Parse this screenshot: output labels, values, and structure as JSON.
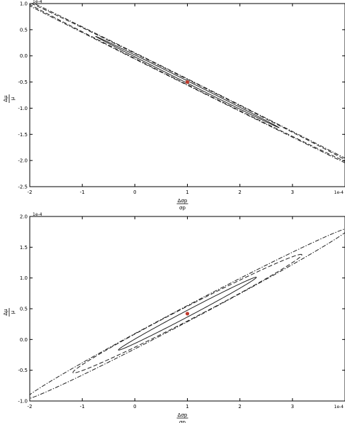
{
  "chart_data": [
    {
      "type": "line",
      "subtype": "confidence-ellipses",
      "xlim": [
        -2,
        4
      ],
      "ylim": [
        -2.5,
        1.0
      ],
      "xticks": [
        -2,
        -1,
        0,
        1,
        2,
        3,
        4
      ],
      "xtick_labels": [
        "-2",
        "-1",
        "0",
        "1",
        "2",
        "3",
        ""
      ],
      "yticks": [
        -2.5,
        -2.0,
        -1.5,
        -1.0,
        -0.5,
        0.0,
        0.5,
        1.0
      ],
      "ytick_labels": [
        "-2.5",
        "-2.0",
        "-1.5",
        "-1.0",
        "-0.5",
        "0.0",
        "0.5",
        "1.0"
      ],
      "x_offset_text": "1e-4",
      "y_offset_text": "1e-4",
      "xlabel": {
        "num": "Δσp",
        "den": "σp"
      },
      "ylabel": {
        "num": "Δμ",
        "den": "μ"
      },
      "grid": false,
      "center": {
        "x": 1.0,
        "y": -0.5,
        "color": "#c0392b"
      },
      "series": [
        {
          "linestyle": "solid",
          "center": [
            1.0,
            -0.5
          ],
          "semi_major": 1.95,
          "semi_minor": 0.02,
          "slope": -0.5
        },
        {
          "linestyle": "dashed",
          "center": [
            1.0,
            -0.5
          ],
          "semi_major": 3.55,
          "semi_minor": 0.045,
          "slope": -0.5
        },
        {
          "linestyle": "dashdot",
          "center": [
            1.0,
            -0.5
          ],
          "semi_major": 4.9,
          "semi_minor": 0.055,
          "slope": -0.5
        }
      ]
    },
    {
      "type": "line",
      "subtype": "confidence-ellipses",
      "xlim": [
        -2,
        4
      ],
      "ylim": [
        -1.0,
        2.0
      ],
      "xticks": [
        -2,
        -1,
        0,
        1,
        2,
        3,
        4
      ],
      "xtick_labels": [
        "-2",
        "-1",
        "0",
        "1",
        "2",
        "3",
        ""
      ],
      "yticks": [
        -1.0,
        -0.5,
        0.0,
        0.5,
        1.0,
        1.5,
        2.0
      ],
      "ytick_labels": [
        "-1.0",
        "-0.5",
        "0.0",
        "0.5",
        "1.0",
        "1.5",
        "2.0"
      ],
      "x_offset_text": "1e-4",
      "y_offset_text": "1e-4",
      "xlabel": {
        "num": "Δσp",
        "den": "σp"
      },
      "ylabel": {
        "num": "Δμ",
        "den": "μ"
      },
      "grid": false,
      "center": {
        "x": 1.0,
        "y": 0.42,
        "color": "#c0392b"
      },
      "series": [
        {
          "linestyle": "solid",
          "center": [
            1.0,
            0.42
          ],
          "semi_major": 1.44,
          "semi_minor": 0.05,
          "slope": 0.45
        },
        {
          "linestyle": "dashed",
          "center": [
            1.0,
            0.42
          ],
          "semi_major": 2.38,
          "semi_minor": 0.11,
          "slope": 0.44
        },
        {
          "linestyle": "dashdot",
          "center": [
            1.0,
            0.42
          ],
          "semi_major": 3.38,
          "semi_minor": 0.12,
          "slope": 0.45
        }
      ]
    }
  ]
}
